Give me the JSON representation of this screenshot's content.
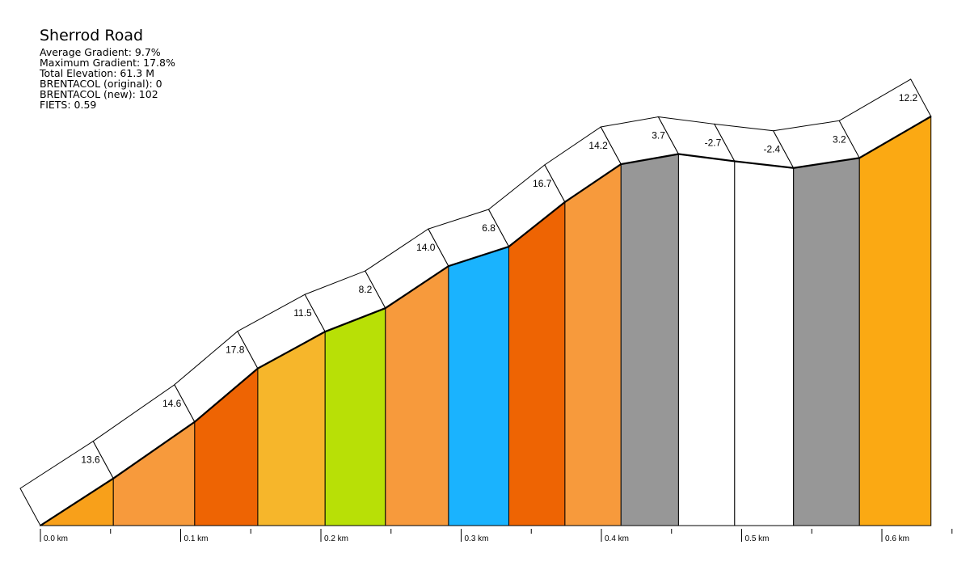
{
  "info": {
    "title": "Sherrod Road",
    "avg_gradient": "Average Gradient: 9.7%",
    "max_gradient": "Maximum Gradient: 17.8%",
    "total_elevation": "Total Elevation: 61.3 M",
    "brentacol_original": "BRENTACOL (original): 0",
    "brentacol_new": "BRENTACOL (new): 102",
    "fiets": "FIETS: 0.59"
  },
  "chart_data": {
    "type": "area",
    "title": "Sherrod Road",
    "xlabel": "",
    "ylabel": "",
    "x_unit": "km",
    "xlim": [
      0,
      0.635
    ],
    "x_ticks": [
      "0.0 km",
      "0.1 km",
      "0.2 km",
      "0.3 km",
      "0.4 km",
      "0.5 km",
      "0.6 km"
    ],
    "segments": [
      {
        "gradient": 13.6,
        "label": "13.6",
        "start_km": 0.0,
        "end_km": 0.052,
        "color": "#f8a01a"
      },
      {
        "gradient": 14.6,
        "label": "14.6",
        "start_km": 0.052,
        "end_km": 0.11,
        "color": "#f79a3c"
      },
      {
        "gradient": 17.8,
        "label": "17.8",
        "start_km": 0.11,
        "end_km": 0.155,
        "color": "#ee6403"
      },
      {
        "gradient": 11.5,
        "label": "11.5",
        "start_km": 0.155,
        "end_km": 0.203,
        "color": "#f6b62b"
      },
      {
        "gradient": 8.2,
        "label": "8.2",
        "start_km": 0.203,
        "end_km": 0.246,
        "color": "#b8e006"
      },
      {
        "gradient": 14.0,
        "label": "14.0",
        "start_km": 0.246,
        "end_km": 0.291,
        "color": "#f79a3c"
      },
      {
        "gradient": 6.8,
        "label": "6.8",
        "start_km": 0.291,
        "end_km": 0.334,
        "color": "#1ab3fe"
      },
      {
        "gradient": 16.7,
        "label": "16.7",
        "start_km": 0.334,
        "end_km": 0.374,
        "color": "#ee6403"
      },
      {
        "gradient": 14.2,
        "label": "14.2",
        "start_km": 0.374,
        "end_km": 0.414,
        "color": "#f79a3c"
      },
      {
        "gradient": 3.7,
        "label": "3.7",
        "start_km": 0.414,
        "end_km": 0.455,
        "color": "#979797"
      },
      {
        "gradient": -2.7,
        "label": "-2.7",
        "start_km": 0.455,
        "end_km": 0.495,
        "color": "#ffffff"
      },
      {
        "gradient": -2.4,
        "label": "-2.4",
        "start_km": 0.495,
        "end_km": 0.537,
        "color": "#ffffff"
      },
      {
        "gradient": 3.2,
        "label": "3.2",
        "start_km": 0.537,
        "end_km": 0.584,
        "color": "#979797"
      },
      {
        "gradient": 12.2,
        "label": "12.2",
        "start_km": 0.584,
        "end_km": 0.635,
        "color": "#fba913"
      }
    ],
    "grid": false,
    "legend": "none"
  }
}
